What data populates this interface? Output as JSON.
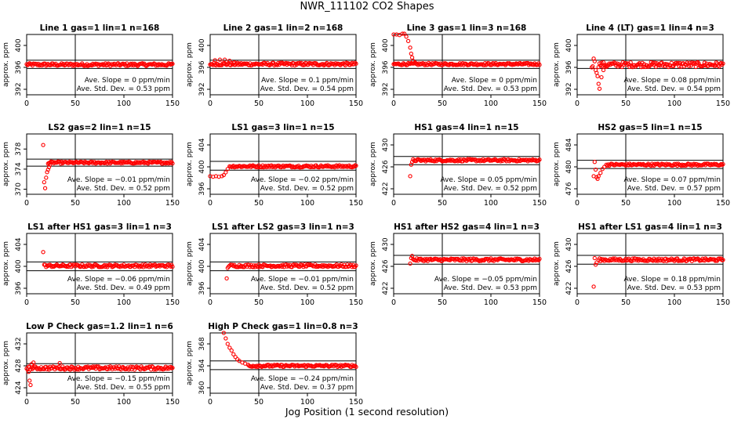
{
  "figure": {
    "title": "NWR_111102  CO2 Shapes",
    "xlabel": "Jog Position (1 second resolution)",
    "ylabel": "approx. ppm",
    "marker_color": "#ff0000",
    "slope_unit": "ppm/min",
    "sd_unit": "ppm"
  },
  "chart_data": [
    {
      "type": "scatter",
      "title": "Line 1 gas=1 lin=1 n=168",
      "xlim": [
        0,
        150
      ],
      "x_ticks": [
        0,
        50,
        100,
        150
      ],
      "y_ticks": [
        392,
        396,
        400
      ],
      "ylim": [
        391,
        402
      ],
      "hlines": [
        397.3,
        395.8
      ],
      "vline": 50,
      "slope_text": "Ave. Slope = 0  ppm/min",
      "sd_text": "Ave. Std. Dev. = 0.53  ppm",
      "x_start": 0,
      "x_end": 150,
      "base": 396.5,
      "noise": 0.25,
      "transient": []
    },
    {
      "type": "scatter",
      "title": "Line 2 gas=1 lin=2 n=168",
      "xlim": [
        0,
        150
      ],
      "x_ticks": [
        0,
        50,
        100,
        150
      ],
      "y_ticks": [
        392,
        396,
        400
      ],
      "ylim": [
        391,
        402
      ],
      "hlines": [
        397.3,
        395.8
      ],
      "vline": 50,
      "slope_text": "Ave. Slope = 0.1  ppm/min",
      "sd_text": "Ave. Std. Dev. = 0.54  ppm",
      "x_start": 0,
      "x_end": 150,
      "base": 396.6,
      "noise": 0.25,
      "transient": [
        [
          5,
          397.3
        ],
        [
          10,
          397.4
        ],
        [
          15,
          397.4
        ],
        [
          20,
          397.2
        ],
        [
          25,
          396.9
        ]
      ]
    },
    {
      "type": "scatter",
      "title": "Line 3 gas=1 lin=3 n=168",
      "xlim": [
        0,
        150
      ],
      "x_ticks": [
        0,
        50,
        100,
        150
      ],
      "y_ticks": [
        392,
        396,
        400
      ],
      "ylim": [
        391,
        402
      ],
      "hlines": [
        397.3,
        395.8
      ],
      "vline": 50,
      "slope_text": "Ave. Slope = 0  ppm/min",
      "sd_text": "Ave. Std. Dev. = 0.53  ppm",
      "x_start": 0,
      "x_end": 150,
      "base": 396.6,
      "noise": 0.2,
      "transient": [
        [
          0,
          402
        ],
        [
          3,
          402
        ],
        [
          6,
          401.9
        ],
        [
          9,
          402.2
        ],
        [
          11,
          402.3
        ],
        [
          13,
          401.6
        ],
        [
          15,
          400.8
        ],
        [
          17,
          399.6
        ],
        [
          18,
          398.5
        ],
        [
          19,
          397.8
        ],
        [
          20,
          397.2
        ],
        [
          22,
          396.9
        ]
      ]
    },
    {
      "type": "scatter",
      "title": "Line 4 (LT) gas=1 lin=4 n=3",
      "xlim": [
        0,
        150
      ],
      "x_ticks": [
        0,
        50,
        100,
        150
      ],
      "y_ticks": [
        392,
        396,
        400
      ],
      "ylim": [
        391,
        402
      ],
      "hlines": [
        397.3,
        395.8
      ],
      "vline": 50,
      "slope_text": "Ave. Slope = 0.08  ppm/min",
      "sd_text": "Ave. Std. Dev. = 0.54  ppm",
      "x_start": 22,
      "x_end": 150,
      "base": 396.5,
      "noise": 0.45,
      "transient": [
        [
          15,
          396
        ],
        [
          16,
          396.2
        ],
        [
          17,
          397.6
        ],
        [
          18,
          397.1
        ],
        [
          19,
          395.5
        ],
        [
          20,
          395
        ],
        [
          21,
          394.4
        ],
        [
          22,
          393
        ],
        [
          23,
          392.1
        ],
        [
          25,
          394.2
        ],
        [
          27,
          395.5
        ],
        [
          30,
          396.1
        ]
      ]
    },
    {
      "type": "scatter",
      "title": "LS2 gas=2 lin=1 n=15",
      "xlim": [
        0,
        150
      ],
      "x_ticks": [
        0,
        50,
        100,
        150
      ],
      "y_ticks": [
        370,
        374,
        378
      ],
      "ylim": [
        369,
        381
      ],
      "hlines": [
        376,
        374.6
      ],
      "vline": 50,
      "slope_text": "Ave. Slope = −0.01  ppm/min",
      "sd_text": "Ave. Std. Dev. = 0.52  ppm",
      "x_start": 22,
      "x_end": 150,
      "base": 375.3,
      "noise": 0.2,
      "transient": [
        [
          17,
          378.8
        ],
        [
          18,
          371.4
        ],
        [
          19,
          370.2
        ],
        [
          20,
          372.3
        ],
        [
          21,
          373.4
        ],
        [
          22,
          373.9
        ],
        [
          23,
          374.4
        ],
        [
          24,
          374.9
        ]
      ]
    },
    {
      "type": "scatter",
      "title": "LS1 gas=3 lin=1 n=15",
      "xlim": [
        0,
        150
      ],
      "x_ticks": [
        0,
        50,
        100,
        150
      ],
      "y_ticks": [
        396,
        400,
        404
      ],
      "ylim": [
        395,
        406
      ],
      "hlines": [
        401,
        399.4
      ],
      "vline": 50,
      "slope_text": "Ave. Slope = −0.02  ppm/min",
      "sd_text": "Ave. Std. Dev. = 0.52  ppm",
      "x_start": 20,
      "x_end": 150,
      "base": 400.1,
      "noise": 0.2,
      "transient": [
        [
          0,
          398.3
        ],
        [
          3,
          398.2
        ],
        [
          6,
          398.3
        ],
        [
          9,
          398.2
        ],
        [
          12,
          398.3
        ],
        [
          14,
          398.5
        ],
        [
          16,
          399
        ],
        [
          18,
          399.6
        ]
      ]
    },
    {
      "type": "scatter",
      "title": "HS1 gas=4 lin=1 n=15",
      "xlim": [
        0,
        150
      ],
      "x_ticks": [
        0,
        50,
        100,
        150
      ],
      "y_ticks": [
        422,
        426,
        430
      ],
      "ylim": [
        421,
        432
      ],
      "hlines": [
        427.9,
        426.4
      ],
      "vline": 50,
      "slope_text": "Ave. Slope = 0.05  ppm/min",
      "sd_text": "Ave. Std. Dev. = 0.52  ppm",
      "x_start": 20,
      "x_end": 150,
      "base": 427.2,
      "noise": 0.2,
      "transient": [
        [
          17,
          424.3
        ],
        [
          18,
          426.4
        ],
        [
          19,
          426.9
        ]
      ]
    },
    {
      "type": "scatter",
      "title": "HS2 gas=5 lin=1 n=15",
      "xlim": [
        0,
        150
      ],
      "x_ticks": [
        0,
        50,
        100,
        150
      ],
      "y_ticks": [
        476,
        480,
        484
      ],
      "ylim": [
        475,
        486
      ],
      "hlines": [
        481.2,
        479.7
      ],
      "vline": 50,
      "slope_text": "Ave. Slope = 0.07  ppm/min",
      "sd_text": "Ave. Std. Dev. = 0.57  ppm",
      "x_start": 30,
      "x_end": 150,
      "base": 480.4,
      "noise": 0.2,
      "transient": [
        [
          17,
          478.3
        ],
        [
          18,
          480.9
        ],
        [
          19,
          479.5
        ],
        [
          20,
          478.1
        ],
        [
          21,
          477.8
        ],
        [
          22,
          478.3
        ],
        [
          24,
          478.9
        ],
        [
          26,
          479.6
        ],
        [
          28,
          480
        ]
      ]
    },
    {
      "type": "scatter",
      "title": "LS1 after HS1 gas=3 lin=1 n=3",
      "xlim": [
        0,
        150
      ],
      "x_ticks": [
        0,
        50,
        100,
        150
      ],
      "y_ticks": [
        396,
        400,
        404
      ],
      "ylim": [
        395,
        406
      ],
      "hlines": [
        400.8,
        399.2
      ],
      "vline": 50,
      "slope_text": "Ave. Slope = −0.06  ppm/min",
      "sd_text": "Ave. Std. Dev. = 0.49  ppm",
      "x_start": 19,
      "x_end": 150,
      "base": 400.1,
      "noise": 0.25,
      "transient": [
        [
          17,
          402.6
        ],
        [
          18,
          400.3
        ]
      ]
    },
    {
      "type": "scatter",
      "title": "LS1 after LS2 gas=3 lin=1 n=3",
      "xlim": [
        0,
        150
      ],
      "x_ticks": [
        0,
        50,
        100,
        150
      ],
      "y_ticks": [
        396,
        400,
        404
      ],
      "ylim": [
        395,
        406
      ],
      "hlines": [
        400.8,
        399.2
      ],
      "vline": 50,
      "slope_text": "Ave. Slope = −0.01  ppm/min",
      "sd_text": "Ave. Std. Dev. = 0.52  ppm",
      "x_start": 19,
      "x_end": 150,
      "base": 400.1,
      "noise": 0.25,
      "transient": [
        [
          17,
          397.8
        ],
        [
          18,
          399.7
        ]
      ]
    },
    {
      "type": "scatter",
      "title": "HS1 after HS2 gas=4 lin=1 n=3",
      "xlim": [
        0,
        150
      ],
      "x_ticks": [
        0,
        50,
        100,
        150
      ],
      "y_ticks": [
        422,
        426,
        430
      ],
      "ylim": [
        421,
        432
      ],
      "hlines": [
        428,
        426.4
      ],
      "vline": 50,
      "slope_text": "Ave. Slope = −0.05  ppm/min",
      "sd_text": "Ave. Std. Dev. = 0.53  ppm",
      "x_start": 20,
      "x_end": 150,
      "base": 427.2,
      "noise": 0.25,
      "transient": [
        [
          17,
          426.5
        ],
        [
          18,
          427.5
        ],
        [
          19,
          427.9
        ]
      ]
    },
    {
      "type": "scatter",
      "title": "HS1 after LS1 gas=4 lin=1 n=3",
      "xlim": [
        0,
        150
      ],
      "x_ticks": [
        0,
        50,
        100,
        150
      ],
      "y_ticks": [
        422,
        426,
        430
      ],
      "ylim": [
        421,
        432
      ],
      "hlines": [
        428,
        426.4
      ],
      "vline": 50,
      "slope_text": "Ave. Slope = 0.18  ppm/min",
      "sd_text": "Ave. Std. Dev. = 0.53  ppm",
      "x_start": 22,
      "x_end": 150,
      "base": 427.2,
      "noise": 0.25,
      "transient": [
        [
          17,
          422.3
        ],
        [
          18,
          427.5
        ],
        [
          19,
          426.3
        ],
        [
          20,
          426.7
        ]
      ]
    },
    {
      "type": "scatter",
      "title": "Low P Check gas=1.2 lin=1 n=6",
      "xlim": [
        0,
        150
      ],
      "x_ticks": [
        0,
        50,
        100,
        150
      ],
      "y_ticks": [
        424,
        428,
        432
      ],
      "ylim": [
        423,
        434
      ],
      "hlines": [
        428.4,
        426.8
      ],
      "vline": 50,
      "slope_text": "Ave. Slope = −0.15  ppm/min",
      "sd_text": "Ave. Std. Dev. = 0.55  ppm",
      "x_start": 0,
      "x_end": 150,
      "base": 427.6,
      "noise": 0.3,
      "transient": [
        [
          2,
          426.9
        ],
        [
          3,
          425.3
        ],
        [
          4,
          424.5
        ],
        [
          5,
          428.3
        ],
        [
          7,
          428.6
        ],
        [
          34,
          428.5
        ]
      ]
    },
    {
      "type": "scatter",
      "title": "High P Check gas=1 lin=0.8 n=3",
      "xlim": [
        0,
        150
      ],
      "x_ticks": [
        0,
        50,
        100,
        150
      ],
      "y_ticks": [
        360,
        364,
        368
      ],
      "ylim": [
        359,
        370
      ],
      "hlines": [
        364.9,
        363.3
      ],
      "vline": 50,
      "slope_text": "Ave. Slope = −0.24  ppm/min",
      "sd_text": "Ave. Std. Dev. = 0.37  ppm",
      "x_start": 40,
      "x_end": 150,
      "base": 364,
      "noise": 0.2,
      "transient": [
        [
          14,
          370
        ],
        [
          16,
          369
        ],
        [
          18,
          368
        ],
        [
          20,
          367.3
        ],
        [
          22,
          366.8
        ],
        [
          24,
          366.1
        ],
        [
          26,
          365.6
        ],
        [
          28,
          365.2
        ],
        [
          30,
          364.9
        ],
        [
          33,
          364.6
        ],
        [
          36,
          364.4
        ],
        [
          39,
          364.2
        ]
      ]
    }
  ]
}
